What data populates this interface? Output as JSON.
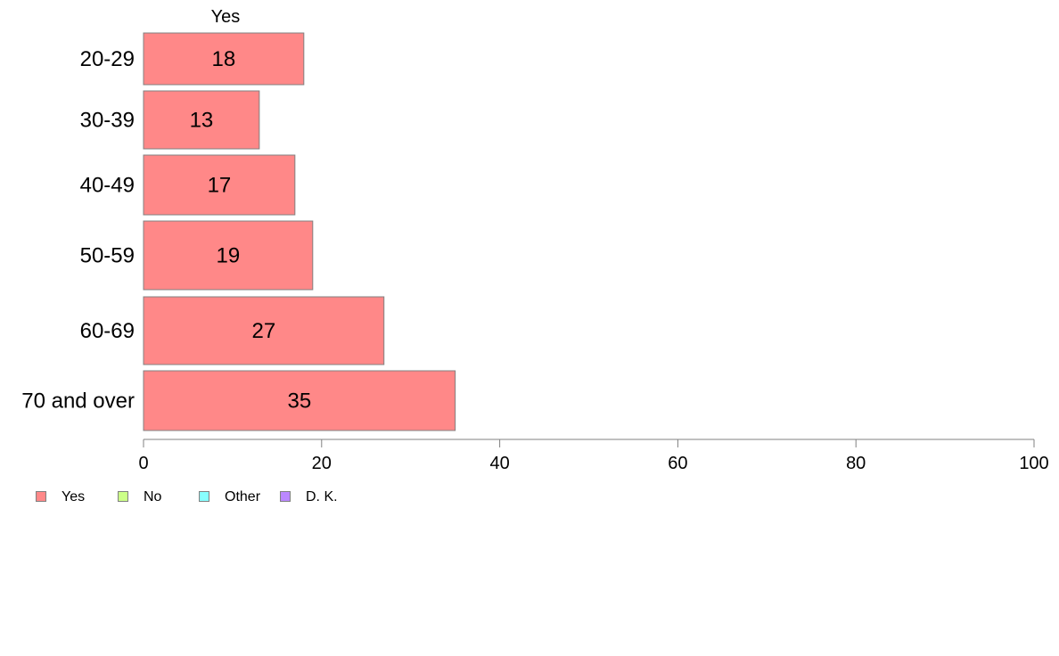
{
  "chart_data": {
    "type": "bar",
    "orientation": "horizontal",
    "panel_title": "Yes",
    "categories": [
      "20-29",
      "30-39",
      "40-49",
      "50-59",
      "60-69",
      "70 and over"
    ],
    "series": [
      {
        "name": "Yes",
        "values": [
          18,
          13,
          17,
          19,
          27,
          35
        ],
        "color": "#ff8888"
      }
    ],
    "data_labels": [
      "18",
      "13",
      "17",
      "19",
      "27",
      "35"
    ],
    "xlim": [
      0,
      100
    ],
    "x_ticks": [
      "0",
      "20",
      "40",
      "60",
      "80",
      "100"
    ],
    "xlabel": "",
    "ylabel": "",
    "grid": false,
    "legend_placement": "bottom-left"
  },
  "legend": [
    {
      "label": "Yes",
      "color": "#ff8888"
    },
    {
      "label": "No",
      "color": "#ccff88"
    },
    {
      "label": "Other",
      "color": "#88ffff"
    },
    {
      "label": "D. K.",
      "color": "#bb88ff"
    }
  ]
}
